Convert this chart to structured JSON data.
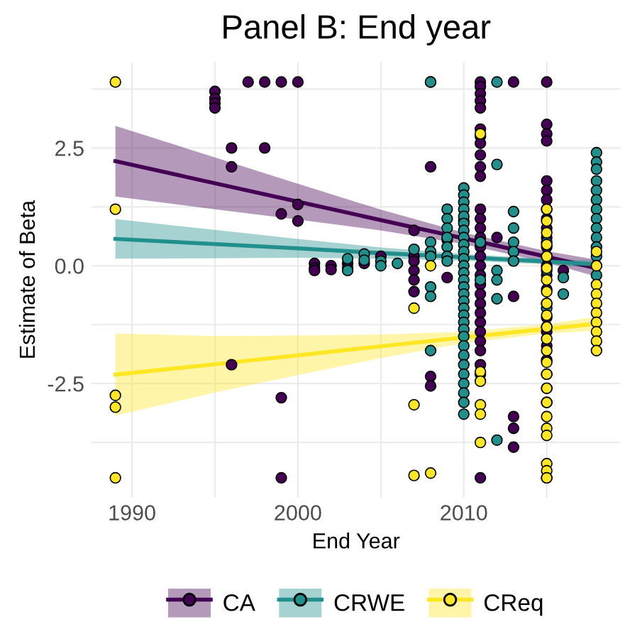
{
  "chart_data": {
    "type": "scatter",
    "title": "Panel B: End year",
    "xlabel": "End Year",
    "ylabel": "Estimate of Beta",
    "xlim": [
      1987.55,
      2019.45
    ],
    "ylim": [
      -4.92,
      4.32
    ],
    "xticks": [
      {
        "value": 1990,
        "label": "1990"
      },
      {
        "value": 1995,
        "label": null
      },
      {
        "value": 2000,
        "label": "2000"
      },
      {
        "value": 2005,
        "label": null
      },
      {
        "value": 2010,
        "label": "2010"
      },
      {
        "value": 2015,
        "label": null
      }
    ],
    "yticks": [
      {
        "value": -3.75,
        "label": null
      },
      {
        "value": -2.5,
        "label": "-2.5"
      },
      {
        "value": -1.25,
        "label": null
      },
      {
        "value": 0,
        "label": "0.0"
      },
      {
        "value": 1.25,
        "label": null
      },
      {
        "value": 2.5,
        "label": "2.5"
      },
      {
        "value": 3.75,
        "label": null
      }
    ],
    "grid": true,
    "legend": "bottom",
    "marker": "circle",
    "series": [
      {
        "name": "CA",
        "color": "#440154",
        "x": [
          1995,
          1995,
          1995,
          1995,
          1996,
          1996,
          1996,
          1997,
          1998,
          1998,
          1999,
          1999,
          1999,
          1999,
          2000,
          2000,
          2000,
          2001,
          2001,
          2001,
          2002,
          2002,
          2003,
          2003,
          2004,
          2005,
          2007,
          2007,
          2007,
          2007,
          2007,
          2007,
          2008,
          2008,
          2008,
          2008,
          2009,
          2009,
          2010,
          2011,
          2011,
          2011,
          2011,
          2011,
          2011,
          2011,
          2011,
          2011,
          2011,
          2011,
          2011,
          2011,
          2011,
          2011,
          2011,
          2011,
          2011,
          2011,
          2011,
          2011,
          2011,
          2011,
          2011,
          2011,
          2011,
          2011,
          2011,
          2011,
          2011,
          2012,
          2013,
          2013,
          2013,
          2013,
          2013,
          2015,
          2015,
          2015,
          2015,
          2015,
          2015,
          2015,
          2015,
          2015,
          2015,
          2015,
          2015,
          2015,
          2015,
          2015,
          2015,
          2015,
          2015,
          2015,
          2015,
          2015,
          2015,
          2015,
          2015,
          2015,
          2016
        ],
        "values": [
          3.7,
          3.55,
          3.45,
          3.35,
          2.5,
          2.1,
          -2.1,
          3.9,
          3.9,
          2.5,
          3.9,
          1.1,
          -2.8,
          -4.5,
          3.9,
          1.3,
          0.95,
          0.05,
          -0.05,
          -0.1,
          0.0,
          -0.08,
          0.05,
          -0.05,
          0.05,
          0.2,
          0.75,
          0.2,
          0.1,
          -0.1,
          -0.3,
          -0.55,
          3.9,
          2.1,
          -2.35,
          -2.55,
          0.55,
          -0.25,
          0.95,
          3.9,
          3.8,
          3.65,
          3.5,
          3.35,
          2.9,
          2.75,
          2.6,
          2.35,
          2.1,
          1.9,
          1.2,
          1.0,
          0.8,
          0.6,
          0.4,
          0.2,
          0.0,
          -0.2,
          -0.4,
          -0.6,
          -0.8,
          -1.0,
          -1.2,
          -1.4,
          -1.6,
          -1.8,
          -2.1,
          -2.3,
          -4.5,
          0.6,
          3.9,
          -0.65,
          -3.2,
          -3.45,
          -3.85,
          3.9,
          3.0,
          2.8,
          2.65,
          1.8,
          1.6,
          1.4,
          1.2,
          1.0,
          0.8,
          0.6,
          0.4,
          0.2,
          0.0,
          -0.2,
          -0.5,
          -0.8,
          -1.1,
          -1.4,
          -1.7,
          -2.0,
          -2.3,
          -2.6,
          -2.9,
          -4.5,
          -0.1
        ]
      },
      {
        "name": "CRWE",
        "color": "#21908c",
        "x": [
          2003,
          2003,
          2004,
          2004,
          2005,
          2005,
          2006,
          2007,
          2008,
          2008,
          2008,
          2008,
          2008,
          2008,
          2008,
          2009,
          2009,
          2009,
          2009,
          2009,
          2009,
          2009,
          2010,
          2010,
          2010,
          2010,
          2010,
          2010,
          2010,
          2010,
          2010,
          2010,
          2010,
          2010,
          2010,
          2010,
          2010,
          2010,
          2010,
          2010,
          2010,
          2010,
          2010,
          2010,
          2010,
          2010,
          2010,
          2010,
          2010,
          2010,
          2010,
          2010,
          2011,
          2011,
          2012,
          2012,
          2012,
          2012,
          2012,
          2012,
          2013,
          2013,
          2013,
          2013,
          2013,
          2015,
          2015,
          2015,
          2015,
          2015,
          2016,
          2016,
          2018,
          2018,
          2018,
          2018,
          2018,
          2018,
          2018,
          2018,
          2018,
          2018,
          2018,
          2018,
          2018,
          2018
        ],
        "values": [
          0.15,
          -0.1,
          0.25,
          0.12,
          0.1,
          0.0,
          0.05,
          0.35,
          3.9,
          0.5,
          0.3,
          0.2,
          -0.45,
          -0.65,
          -1.8,
          1.2,
          1.0,
          0.8,
          0.6,
          0.4,
          0.2,
          0.1,
          1.65,
          1.5,
          1.35,
          1.2,
          1.05,
          0.9,
          0.75,
          0.6,
          0.45,
          0.3,
          0.15,
          0.0,
          -0.15,
          -0.3,
          -0.45,
          -0.6,
          -0.75,
          -0.9,
          -1.05,
          -1.2,
          -1.35,
          -1.5,
          -1.7,
          -1.9,
          -2.1,
          -2.3,
          -2.5,
          -2.7,
          -2.9,
          -3.15,
          0.5,
          -0.3,
          3.9,
          2.15,
          -0.1,
          -0.3,
          -0.7,
          -3.7,
          1.15,
          0.8,
          0.5,
          0.3,
          0.1,
          0.5,
          0.2,
          -0.1,
          -0.9,
          -1.3,
          -0.25,
          -0.6,
          2.4,
          2.2,
          2.05,
          1.8,
          1.6,
          1.4,
          1.2,
          1.0,
          0.8,
          0.6,
          0.4,
          0.2,
          0.0,
          -0.2
        ]
      },
      {
        "name": "CReq",
        "color": "#fde725",
        "x": [
          1989,
          1989,
          1989,
          1989,
          1989,
          2007,
          2007,
          2007,
          2008,
          2008,
          2011,
          2011,
          2011,
          2011,
          2011,
          2011,
          2015,
          2015,
          2015,
          2015,
          2015,
          2015,
          2015,
          2015,
          2015,
          2015,
          2015,
          2015,
          2015,
          2015,
          2015,
          2015,
          2015,
          2015,
          2015,
          2015,
          2015,
          2015,
          2015,
          2018,
          2018,
          2018,
          2018,
          2018,
          2018,
          2018,
          2018,
          2018,
          2018
        ],
        "values": [
          3.9,
          1.2,
          -2.75,
          -3.0,
          -4.5,
          -0.9,
          -2.95,
          -4.45,
          0.0,
          -4.4,
          2.8,
          -2.25,
          -2.45,
          -2.95,
          -3.15,
          -3.75,
          1.2,
          0.95,
          0.7,
          0.45,
          0.2,
          -0.05,
          -0.3,
          -0.55,
          -0.8,
          -1.05,
          -1.3,
          -1.55,
          -1.8,
          -2.05,
          -2.3,
          -2.6,
          -2.9,
          -3.2,
          -3.45,
          -3.6,
          -4.2,
          -4.35,
          -4.5,
          0.3,
          0.0,
          -0.4,
          -0.6,
          -0.8,
          -1.0,
          -1.2,
          -1.4,
          -1.6,
          -1.8
        ]
      },
      {
        "type": "line",
        "marker": "none",
        "color": "#440154",
        "x": [
          1989,
          1995,
          2000,
          2005,
          2010,
          2015,
          2018
        ],
        "values": [
          2.22,
          1.75,
          1.36,
          0.97,
          0.58,
          0.19,
          -0.05
        ],
        "lower": [
          1.47,
          1.2,
          0.98,
          0.75,
          0.46,
          0.07,
          -0.23
        ],
        "upper": [
          2.97,
          2.3,
          1.74,
          1.19,
          0.7,
          0.31,
          0.13
        ]
      },
      {
        "type": "line",
        "marker": "none",
        "color": "#21908c",
        "x": [
          1989,
          1995,
          2000,
          2005,
          2010,
          2015,
          2018
        ],
        "values": [
          0.57,
          0.46,
          0.37,
          0.27,
          0.18,
          0.09,
          0.03
        ],
        "lower": [
          0.15,
          0.16,
          0.17,
          0.15,
          0.11,
          0.03,
          -0.05
        ],
        "upper": [
          0.99,
          0.76,
          0.57,
          0.39,
          0.25,
          0.15,
          0.11
        ]
      },
      {
        "type": "line",
        "marker": "none",
        "color": "#fde725",
        "x": [
          1989,
          1995,
          2000,
          2005,
          2010,
          2015,
          2018
        ],
        "values": [
          -2.31,
          -2.09,
          -1.9,
          -1.71,
          -1.52,
          -1.34,
          -1.23
        ],
        "lower": [
          -3.18,
          -2.69,
          -2.32,
          -1.96,
          -1.64,
          -1.44,
          -1.38
        ],
        "upper": [
          -1.44,
          -1.49,
          -1.48,
          -1.46,
          -1.4,
          -1.24,
          -1.08
        ]
      }
    ]
  }
}
